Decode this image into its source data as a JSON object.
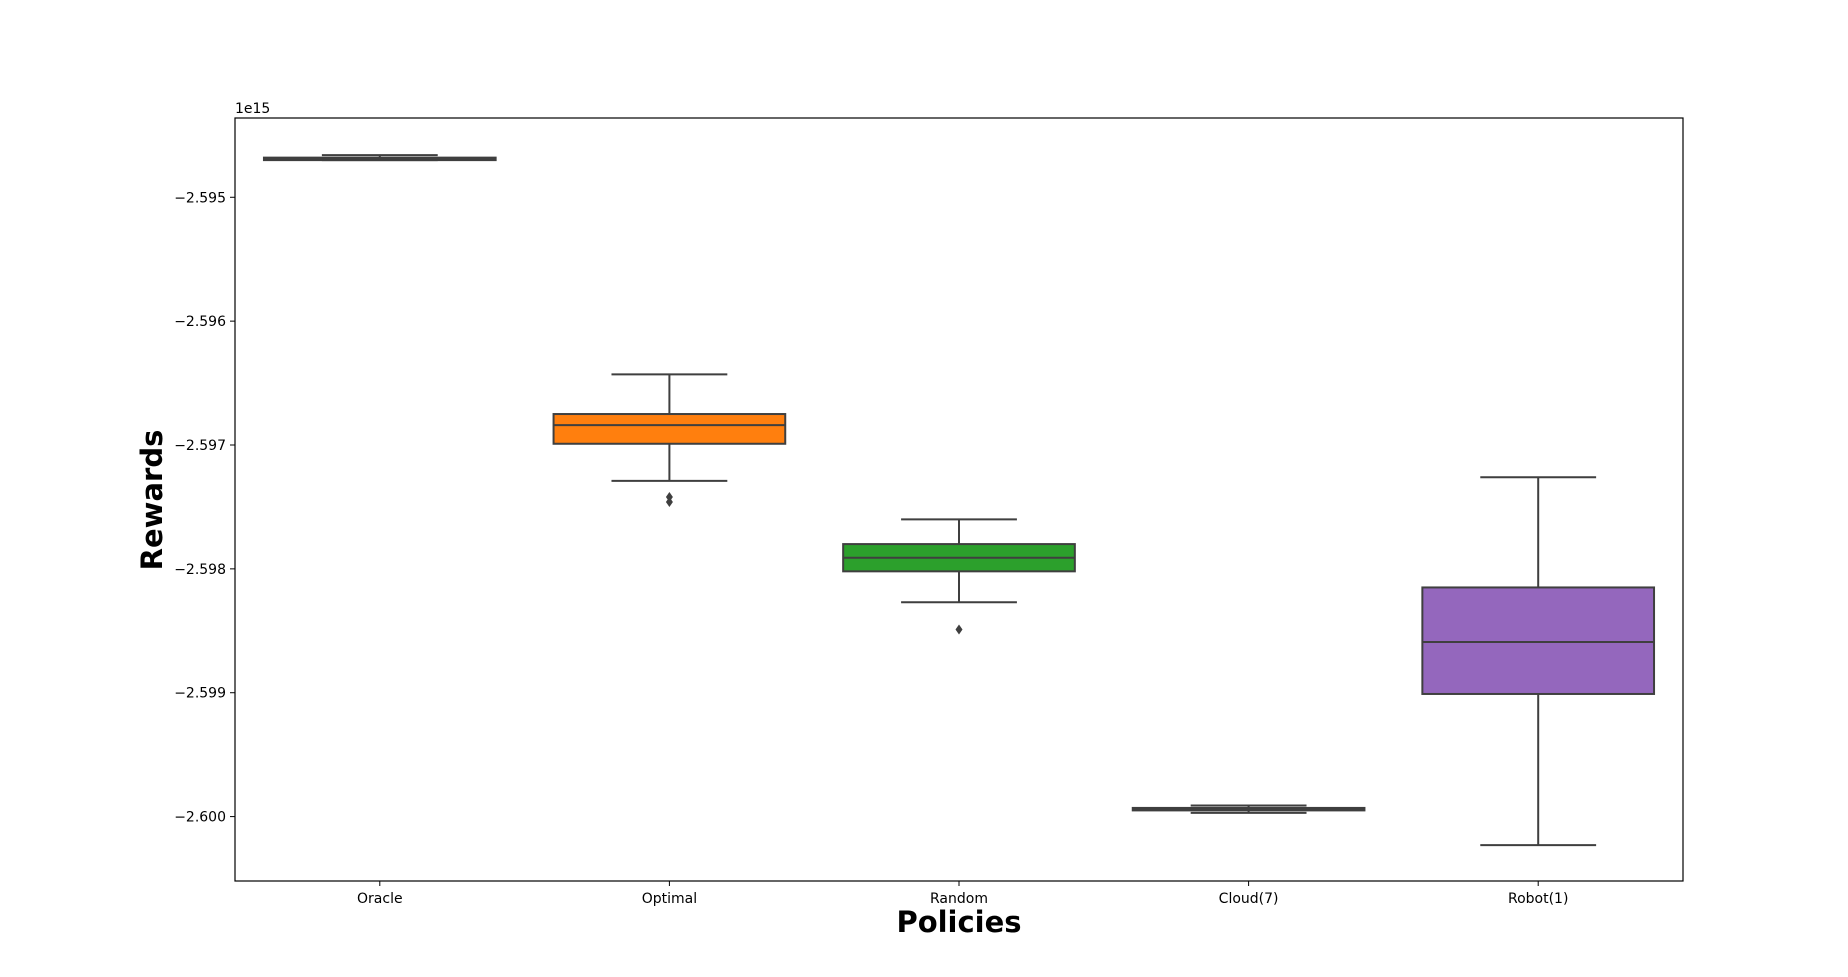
{
  "chart_data": {
    "type": "box",
    "xlabel": "Policies",
    "ylabel": "Rewards",
    "offset_label": "1e15",
    "ylim": [
      -2.60052,
      -2.59436
    ],
    "yticks": [
      -2.6,
      -2.599,
      -2.598,
      -2.597,
      -2.596,
      -2.595
    ],
    "ytick_labels": [
      "−2.600",
      "−2.599",
      "−2.598",
      "−2.597",
      "−2.596",
      "−2.595"
    ],
    "grid": false,
    "categories": [
      "Oracle",
      "Optimal",
      "Random",
      "Cloud(7)",
      "Robot(1)"
    ],
    "boxes": [
      {
        "label": "Oracle",
        "whislo": -2.5947,
        "q1": -2.5947,
        "median": -2.59469,
        "q3": -2.59468,
        "whishi": -2.59466,
        "fliers": [],
        "color": "#1f77b4"
      },
      {
        "label": "Optimal",
        "whislo": -2.59729,
        "q1": -2.59699,
        "median": -2.59684,
        "q3": -2.59675,
        "whishi": -2.59643,
        "fliers": [
          -2.59742,
          -2.59746
        ],
        "color": "#ff7f0e"
      },
      {
        "label": "Random",
        "whislo": -2.59827,
        "q1": -2.59802,
        "median": -2.59791,
        "q3": -2.5978,
        "whishi": -2.5976,
        "fliers": [
          -2.59849
        ],
        "color": "#2ca02c"
      },
      {
        "label": "Cloud(7)",
        "whislo": -2.59997,
        "q1": -2.59995,
        "median": -2.59994,
        "q3": -2.59993,
        "whishi": -2.59991,
        "fliers": [],
        "color": "#d62728"
      },
      {
        "label": "Robot(1)",
        "whislo": -2.60023,
        "q1": -2.59901,
        "median": -2.59859,
        "q3": -2.59815,
        "whishi": -2.59726,
        "fliers": [],
        "color": "#9467bd"
      }
    ]
  }
}
